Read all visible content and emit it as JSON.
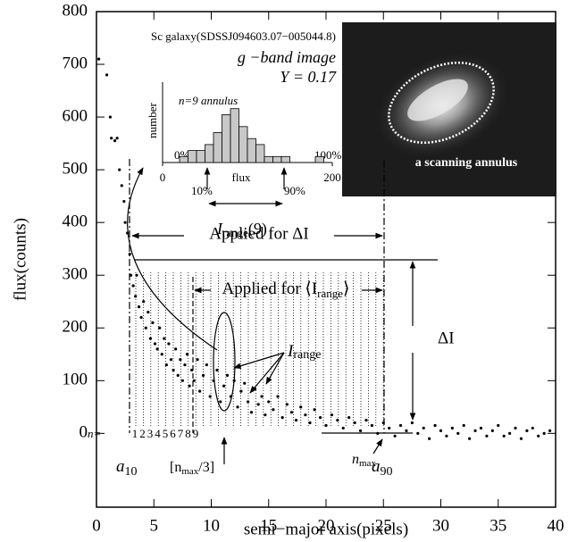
{
  "chart_data": {
    "type": "scatter",
    "xlabel": "semi−major axis(pixels)",
    "ylabel": "flux(counts)",
    "xlim": [
      0,
      40
    ],
    "ylim": [
      -140,
      800
    ],
    "xticks": [
      0,
      5,
      10,
      15,
      20,
      25,
      30,
      35,
      40
    ],
    "yticks": [
      0,
      100,
      200,
      300,
      400,
      500,
      600,
      700,
      800
    ],
    "color": "#000000",
    "x": [
      0.2,
      0.9,
      1.2,
      1.3,
      1.6,
      1.8,
      2.0,
      2.2,
      2.4,
      2.5,
      2.7,
      2.9,
      3.0,
      3.2,
      3.4,
      3.5,
      3.7,
      3.9,
      4.1,
      4.3,
      4.5,
      4.7,
      4.9,
      5.1,
      5.3,
      5.5,
      5.7,
      5.9,
      6.1,
      6.3,
      6.5,
      6.7,
      6.9,
      7.1,
      7.3,
      7.5,
      7.7,
      7.9,
      8.1,
      8.3,
      8.5,
      8.8,
      9.0,
      9.3,
      9.6,
      9.9,
      10.2,
      10.5,
      10.8,
      11.1,
      11.4,
      11.7,
      12.0,
      12.3,
      12.6,
      12.9,
      13.2,
      13.5,
      13.8,
      14.1,
      14.4,
      14.7,
      15.0,
      15.4,
      15.8,
      16.2,
      16.6,
      17.0,
      17.4,
      17.8,
      18.2,
      18.6,
      19.0,
      19.5,
      20.0,
      20.5,
      21.0,
      21.5,
      22.0,
      22.5,
      23.0,
      23.5,
      24.0,
      24.5,
      25.0,
      25.5,
      26.0,
      26.5,
      27.0,
      27.5,
      28.0,
      28.5,
      29.0,
      29.5,
      30.0,
      30.5,
      31.0,
      31.5,
      32.0,
      32.5,
      33.0,
      33.5,
      34.0,
      34.5,
      35.0,
      35.5,
      36.0,
      36.5,
      37.0,
      37.5,
      38.0,
      38.5,
      39.0,
      39.5
    ],
    "values": [
      710,
      680,
      600,
      560,
      555,
      560,
      500,
      470,
      440,
      400,
      380,
      340,
      300,
      280,
      260,
      300,
      240,
      220,
      250,
      200,
      230,
      180,
      210,
      170,
      160,
      200,
      150,
      180,
      130,
      170,
      140,
      120,
      160,
      110,
      140,
      100,
      130,
      150,
      90,
      120,
      100,
      140,
      80,
      110,
      130,
      70,
      100,
      120,
      60,
      90,
      110,
      70,
      100,
      50,
      80,
      95,
      60,
      40,
      85,
      55,
      70,
      35,
      60,
      45,
      70,
      30,
      55,
      40,
      25,
      50,
      35,
      20,
      45,
      30,
      15,
      35,
      25,
      10,
      30,
      20,
      5,
      25,
      15,
      0,
      20,
      10,
      -5,
      15,
      5,
      20,
      0,
      10,
      -10,
      15,
      5,
      -5,
      10,
      0,
      15,
      -10,
      5,
      10,
      -5,
      5,
      15,
      -5,
      0,
      10,
      -10,
      5,
      10,
      -5,
      0,
      5
    ],
    "annotations": {
      "galaxy": "Sc galaxy(SDSSJ094603.07−005044.8)",
      "band": "g −band image",
      "y_param": "Y = 0.17",
      "annulus": "a scanning annulus",
      "applied_delta": "Applied for ΔI",
      "applied_range": {
        "text": "Applied for ⟨I",
        "sub": "range",
        "after": "⟩"
      },
      "delta_i": "ΔI",
      "i_range": {
        "text": "I",
        "sub": "range"
      },
      "n_eq": "n=",
      "annulus_numbers": [
        1,
        2,
        3,
        4,
        5,
        6,
        7,
        8,
        9
      ],
      "a10": {
        "text": "a",
        "sub": "10"
      },
      "a90": {
        "text": "a",
        "sub": "90"
      },
      "nmax3": {
        "text": "[n",
        "sub": "max",
        "after": "/3]"
      },
      "nmax": {
        "text": "n",
        "sub": "max"
      }
    },
    "inset": {
      "type": "histogram",
      "title": "n=9 annulus",
      "xlabel": "flux",
      "ylabel": "number",
      "xlim": [
        0,
        200
      ],
      "ylim": [
        0,
        10
      ],
      "xticks": [
        0,
        200
      ],
      "bins": [
        20,
        30,
        40,
        50,
        60,
        70,
        80,
        90,
        100,
        110,
        120,
        130,
        140,
        150,
        160,
        170,
        180,
        190
      ],
      "counts": [
        1,
        2,
        2,
        3,
        5,
        8,
        9,
        6,
        4,
        3,
        1,
        1,
        1,
        0,
        0,
        0,
        1
      ],
      "color": "#c8c8c8",
      "labels": {
        "p0": "0%",
        "p100": "100%",
        "p10": "10%",
        "p90": "90%",
        "range": {
          "text": "I",
          "sub": "range",
          "after": "(9)"
        }
      }
    }
  }
}
